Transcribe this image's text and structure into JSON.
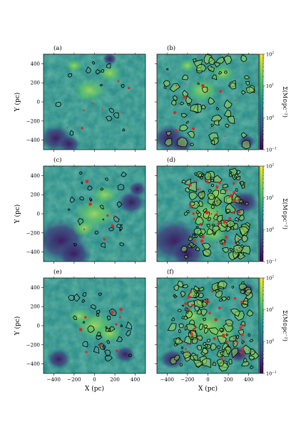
{
  "chart_data": {
    "type": "heatmap",
    "layout": {
      "rows": 3,
      "cols": 2
    },
    "xlabel": "X (pc)",
    "ylabel": "Y (pc)",
    "xlim": [
      -500,
      500
    ],
    "ylim": [
      -500,
      500
    ],
    "xticks": [
      -400,
      -200,
      0,
      200,
      400
    ],
    "xtick_labels": [
      "−400",
      "−200",
      "0",
      "200",
      "400"
    ],
    "yticks": [
      400,
      200,
      0,
      -200,
      -400
    ],
    "ytick_labels": [
      "400",
      "200",
      "0",
      "−200",
      "−400"
    ],
    "colorbar": {
      "label": "Σ(M⊙pc⁻²)",
      "scale": "log",
      "range": [
        0.1,
        100
      ],
      "colormap": "viridis",
      "ticks": [
        {
          "base": "10",
          "exp": "2"
        },
        {
          "base": "10",
          "exp": "1"
        },
        {
          "base": "10",
          "exp": "0"
        },
        {
          "base": "10",
          "exp": "−1"
        }
      ]
    },
    "colors": {
      "low": "#3b1a5c",
      "mid": "#2a8c8a",
      "high": "#7cc86a",
      "peak": "#fde725",
      "contour": "#000000",
      "dense": "#e8231a"
    },
    "panels": [
      {
        "label": "(a)"
      },
      {
        "label": "(b)"
      },
      {
        "label": "(c)"
      },
      {
        "label": "(d)"
      },
      {
        "label": "(e)"
      },
      {
        "label": "(f)"
      }
    ]
  }
}
